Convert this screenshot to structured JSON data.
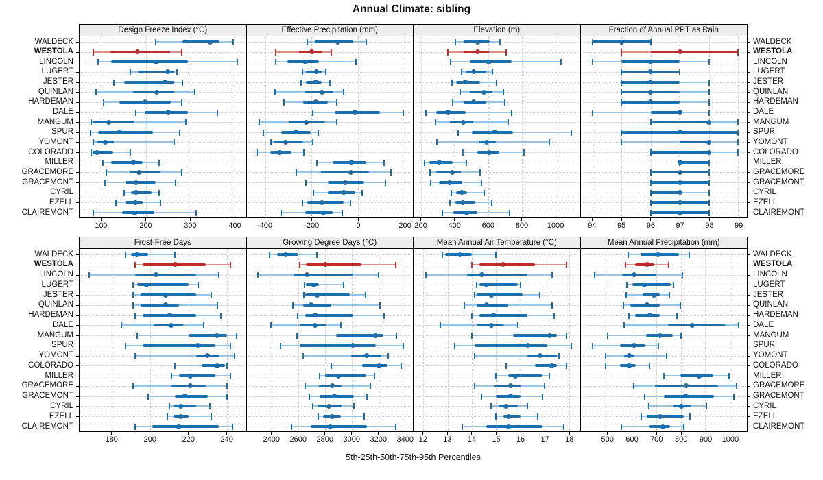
{
  "title": "Annual Climate: sibling",
  "caption": "5th-25th-50th-75th-95th Percentiles",
  "stations": [
    "WALDECK",
    "WESTOLA",
    "LINCOLN",
    "LUGERT",
    "JESTER",
    "QUINLAN",
    "HARDEMAN",
    "DALE",
    "MANGUM",
    "SPUR",
    "YOMONT",
    "COLORADO",
    "MILLER",
    "GRACEMORE",
    "GRACEMONT",
    "CYRIL",
    "EZELL",
    "CLAIREMONT"
  ],
  "highlight_station": "WESTOLA",
  "colors": {
    "series_blue": "#1b6fad",
    "series_blue_light": "#9ac4e2",
    "highlight_red": "#be2d28",
    "highlight_red_light": "#d78f86",
    "grid": "#c9c9c9",
    "strip_bg": "#ededed",
    "border": "#000000"
  },
  "chart_data": {
    "type": "dotplot",
    "percentiles": [
      5,
      25,
      50,
      75,
      95
    ],
    "legend_note": "5th-25th-50th-75th-95th Percentiles",
    "panels": [
      {
        "row": 0,
        "label": "Design Freeze Index (°C)",
        "xlim": [
          50,
          425
        ],
        "ticks": [
          100,
          200,
          300,
          400
        ],
        "values": [
          [
            222,
            282,
            345,
            366,
            397
          ],
          [
            81,
            118,
            180,
            254,
            280
          ],
          [
            92,
            121,
            223,
            295,
            405
          ],
          [
            164,
            182,
            249,
            262,
            269
          ],
          [
            127,
            150,
            243,
            264,
            282
          ],
          [
            87,
            171,
            224,
            263,
            310
          ],
          [
            104,
            139,
            197,
            255,
            280
          ],
          [
            177,
            197,
            251,
            294,
            361
          ],
          [
            77,
            81,
            116,
            172,
            289
          ],
          [
            74,
            92,
            141,
            215,
            276
          ],
          [
            81,
            89,
            108,
            127,
            263
          ],
          [
            76,
            80,
            90,
            126,
            164
          ],
          [
            102,
            121,
            172,
            193,
            229
          ],
          [
            110,
            163,
            183,
            232,
            280
          ],
          [
            107,
            154,
            177,
            222,
            267
          ],
          [
            151,
            166,
            177,
            212,
            229
          ],
          [
            132,
            154,
            176,
            192,
            233
          ],
          [
            81,
            146,
            174,
            218,
            313
          ]
        ]
      },
      {
        "row": 0,
        "label": "Effective Precipitation (mm)",
        "xlim": [
          -480,
          235
        ],
        "ticks": [
          -400,
          -200,
          0,
          200
        ],
        "values": [
          [
            -220,
            -187,
            -87,
            -20,
            35
          ],
          [
            -355,
            -254,
            -200,
            -155,
            -116
          ],
          [
            -354,
            -304,
            -226,
            -170,
            -9
          ],
          [
            -241,
            -224,
            -180,
            -158,
            -139
          ],
          [
            -246,
            -224,
            -182,
            -158,
            -121
          ],
          [
            -358,
            -228,
            -156,
            -111,
            -62
          ],
          [
            -319,
            -236,
            -182,
            -132,
            -93
          ],
          [
            -195,
            -101,
            -14,
            94,
            195
          ],
          [
            -426,
            -300,
            -224,
            -143,
            -92
          ],
          [
            -407,
            -332,
            -267,
            -205,
            -173
          ],
          [
            -375,
            -365,
            -312,
            -238,
            -195
          ],
          [
            -433,
            -378,
            -339,
            -287,
            -234
          ],
          [
            -178,
            -111,
            -29,
            35,
            110
          ],
          [
            -267,
            -160,
            -33,
            47,
            140
          ],
          [
            -224,
            -131,
            -56,
            25,
            117
          ],
          [
            -192,
            -131,
            -62,
            -14,
            18
          ],
          [
            -241,
            -219,
            -156,
            -62,
            -33
          ],
          [
            -332,
            -228,
            -150,
            -111,
            -70
          ]
        ]
      },
      {
        "row": 0,
        "label": "Elevation (m)",
        "xlim": [
          155,
          1147
        ],
        "ticks": [
          200,
          400,
          600,
          800,
          1000
        ],
        "values": [
          [
            403,
            455,
            539,
            610,
            672
          ],
          [
            360,
            455,
            539,
            607,
            706
          ],
          [
            376,
            492,
            604,
            742,
            1034
          ],
          [
            440,
            464,
            512,
            586,
            624
          ],
          [
            383,
            410,
            462,
            550,
            652
          ],
          [
            433,
            492,
            573,
            627,
            692
          ],
          [
            390,
            455,
            512,
            590,
            699
          ],
          [
            227,
            288,
            360,
            464,
            742
          ],
          [
            285,
            370,
            451,
            509,
            719
          ],
          [
            421,
            501,
            641,
            749,
            1095
          ],
          [
            295,
            542,
            590,
            645,
            963
          ],
          [
            451,
            536,
            607,
            665,
            814
          ],
          [
            220,
            248,
            308,
            387,
            468
          ],
          [
            254,
            292,
            387,
            437,
            550
          ],
          [
            258,
            306,
            370,
            444,
            559
          ],
          [
            380,
            410,
            444,
            475,
            577
          ],
          [
            370,
            403,
            447,
            525,
            620
          ],
          [
            326,
            392,
            471,
            536,
            729
          ]
        ]
      },
      {
        "row": 0,
        "label": "Fraction of Annual PPT as Rain",
        "xlim": [
          93.6,
          99.3
        ],
        "ticks": [
          94,
          95,
          96,
          97,
          98,
          99
        ],
        "values": [
          [
            94,
            94,
            95,
            96,
            96
          ],
          [
            95,
            96,
            97,
            99,
            99
          ],
          [
            94,
            95,
            96,
            97,
            98
          ],
          [
            95,
            95,
            96,
            97,
            97
          ],
          [
            95,
            95,
            96,
            97,
            98
          ],
          [
            95,
            95,
            96,
            97,
            98
          ],
          [
            95,
            95,
            96,
            97,
            98
          ],
          [
            94,
            96,
            97,
            97,
            98
          ],
          [
            96,
            96,
            98,
            98,
            99
          ],
          [
            95,
            95,
            97,
            99,
            99
          ],
          [
            95,
            97,
            98,
            98,
            99
          ],
          [
            96,
            96,
            98,
            98,
            99
          ],
          [
            97,
            97,
            97,
            98,
            98
          ],
          [
            96,
            96,
            97,
            98,
            98
          ],
          [
            96,
            96,
            97,
            98,
            98
          ],
          [
            96,
            96,
            97,
            97,
            98
          ],
          [
            96,
            96,
            97,
            98,
            98
          ],
          [
            96,
            96,
            97,
            98,
            98
          ]
        ]
      },
      {
        "row": 1,
        "label": "Frost-Free Days",
        "xlim": [
          163,
          250
        ],
        "ticks": [
          180,
          200,
          220,
          240
        ],
        "values": [
          [
            187,
            190,
            193,
            199,
            213
          ],
          [
            192,
            196,
            213,
            229,
            242
          ],
          [
            168,
            192,
            203,
            224,
            236
          ],
          [
            191,
            193,
            198,
            220,
            225
          ],
          [
            191,
            195,
            208,
            224,
            232
          ],
          [
            191,
            195,
            208,
            215,
            235
          ],
          [
            192,
            196,
            210,
            224,
            237
          ],
          [
            185,
            202,
            211,
            217,
            228
          ],
          [
            193,
            220,
            235,
            240,
            245
          ],
          [
            187,
            196,
            225,
            234,
            242
          ],
          [
            192,
            224,
            230,
            236,
            244
          ],
          [
            213,
            227,
            235,
            239,
            240
          ],
          [
            211,
            215,
            221,
            234,
            242
          ],
          [
            191,
            211,
            221,
            229,
            240
          ],
          [
            199,
            213,
            218,
            230,
            240
          ],
          [
            210,
            212,
            216,
            224,
            231
          ],
          [
            209,
            212,
            216,
            220,
            232
          ],
          [
            192,
            201,
            215,
            236,
            243
          ]
        ]
      },
      {
        "row": 1,
        "label": "Growing Degree Days (°C)",
        "xlim": [
          2210,
          3460
        ],
        "ticks": [
          2400,
          2600,
          2800,
          3000,
          3200,
          3400
        ],
        "values": [
          [
            2383,
            2437,
            2505,
            2600,
            2740
          ],
          [
            2612,
            2658,
            2804,
            3076,
            3331
          ],
          [
            2295,
            2561,
            2663,
            3012,
            3202
          ],
          [
            2646,
            2658,
            2714,
            2753,
            2940
          ],
          [
            2638,
            2652,
            2740,
            2986,
            3105
          ],
          [
            2556,
            2634,
            2697,
            2845,
            3212
          ],
          [
            2595,
            2652,
            2726,
            3012,
            3241
          ],
          [
            2392,
            2607,
            2726,
            2804,
            2918
          ],
          [
            2590,
            2884,
            3178,
            3236,
            3338
          ],
          [
            2465,
            2607,
            3008,
            3182,
            3389
          ],
          [
            2634,
            2998,
            3110,
            3224,
            3275
          ],
          [
            2845,
            3076,
            3207,
            3270,
            3372
          ],
          [
            2760,
            2799,
            2901,
            3110,
            3173
          ],
          [
            2652,
            2753,
            2855,
            2923,
            3139
          ],
          [
            2680,
            2760,
            2872,
            3015,
            3117
          ],
          [
            2709,
            2743,
            2828,
            2923,
            3015
          ],
          [
            2748,
            2787,
            2855,
            2918,
            3093
          ],
          [
            2550,
            2692,
            2838,
            3117,
            3331
          ]
        ]
      },
      {
        "row": 1,
        "label": "Mean Annual Air Temperature (°C)",
        "xlim": [
          11.6,
          18.45
        ],
        "ticks": [
          12,
          13,
          14,
          15,
          16,
          17,
          18
        ],
        "values": [
          [
            12.8,
            12.9,
            13.5,
            14.0,
            15.0
          ],
          [
            14.0,
            14.3,
            15.3,
            16.6,
            17.9
          ],
          [
            12.1,
            13.8,
            14.4,
            16.3,
            17.3
          ],
          [
            14.2,
            14.3,
            14.6,
            15.9,
            16.0
          ],
          [
            14.1,
            14.2,
            14.8,
            16.1,
            16.8
          ],
          [
            13.7,
            14.2,
            14.6,
            15.5,
            17.3
          ],
          [
            14.0,
            14.3,
            14.9,
            16.3,
            17.4
          ],
          [
            12.7,
            14.2,
            14.8,
            15.3,
            15.9
          ],
          [
            14.0,
            15.7,
            17.2,
            17.5,
            17.9
          ],
          [
            13.3,
            14.1,
            16.3,
            17.1,
            18.1
          ],
          [
            14.1,
            16.3,
            16.8,
            17.5,
            17.6
          ],
          [
            15.4,
            16.6,
            17.3,
            17.5,
            17.9
          ],
          [
            15.0,
            15.5,
            15.8,
            16.9,
            17.2
          ],
          [
            14.1,
            14.9,
            15.6,
            16.0,
            17.0
          ],
          [
            14.4,
            15.0,
            15.6,
            16.0,
            16.9
          ],
          [
            14.8,
            15.1,
            15.4,
            15.9,
            16.3
          ],
          [
            15.0,
            15.3,
            15.5,
            16.0,
            16.7
          ],
          [
            13.6,
            14.6,
            15.5,
            16.9,
            17.8
          ]
        ]
      },
      {
        "row": 1,
        "label": "Mean Annual Precipitation (mm)",
        "xlim": [
          390,
          1070
        ],
        "ticks": [
          500,
          600,
          700,
          800,
          900,
          1000
        ],
        "values": [
          [
            586,
            636,
            707,
            793,
            834
          ],
          [
            574,
            614,
            661,
            691,
            751
          ],
          [
            447,
            561,
            608,
            701,
            806
          ],
          [
            580,
            602,
            651,
            760,
            770
          ],
          [
            577,
            645,
            691,
            714,
            753
          ],
          [
            565,
            593,
            663,
            714,
            797
          ],
          [
            589,
            614,
            673,
            714,
            784
          ],
          [
            568,
            747,
            846,
            979,
            1035
          ],
          [
            500,
            658,
            714,
            766,
            800
          ],
          [
            438,
            552,
            608,
            654,
            707
          ],
          [
            491,
            568,
            589,
            611,
            741
          ],
          [
            491,
            552,
            589,
            617,
            673
          ],
          [
            732,
            797,
            874,
            933,
            998
          ],
          [
            608,
            695,
            821,
            951,
            1029
          ],
          [
            651,
            732,
            819,
            936,
            1016
          ],
          [
            670,
            769,
            803,
            840,
            905
          ],
          [
            639,
            661,
            716,
            812,
            837
          ],
          [
            556,
            673,
            726,
            756,
            812
          ]
        ]
      }
    ]
  }
}
